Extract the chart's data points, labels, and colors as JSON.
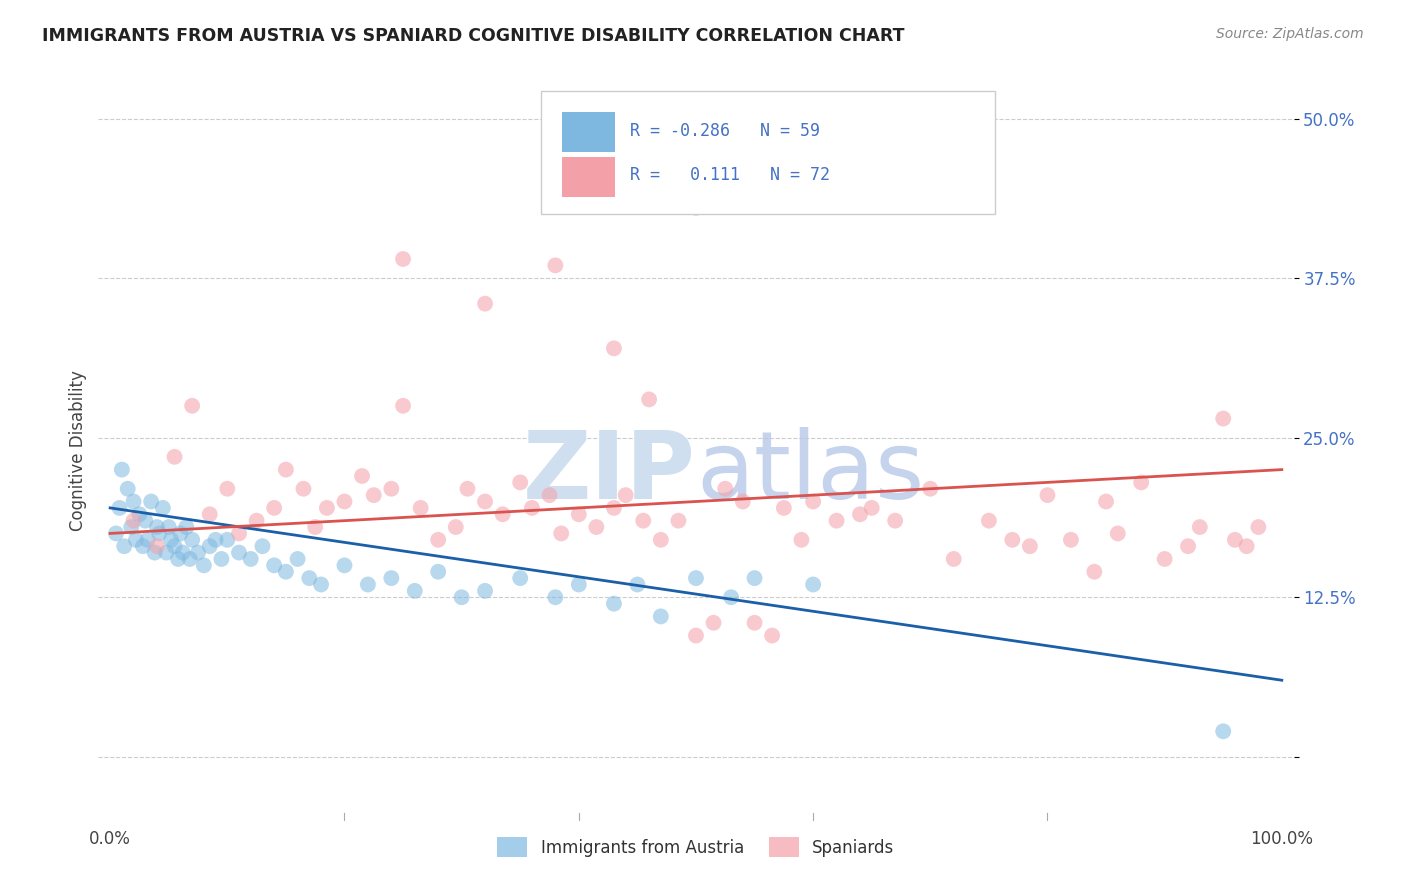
{
  "title": "IMMIGRANTS FROM AUSTRIA VS SPANIARD COGNITIVE DISABILITY CORRELATION CHART",
  "source": "Source: ZipAtlas.com",
  "ylabel": "Cognitive Disability",
  "xtick_labels": [
    "0.0%",
    "100.0%"
  ],
  "ytick_labels": [
    "",
    "12.5%",
    "25.0%",
    "37.5%",
    "50.0%"
  ],
  "ytick_vals": [
    0,
    12.5,
    25,
    37.5,
    50
  ],
  "legend_line1": "R = -0.286   N = 59",
  "legend_line2": "R =    0.111   N = 72",
  "blue_color": "#7eb8e0",
  "pink_color": "#f4a0a8",
  "trend_blue_color": "#1a5fa8",
  "trend_pink_color": "#d9534f",
  "grid_color": "#cccccc",
  "bg_color": "#ffffff",
  "label_color": "#4472C4",
  "title_color": "#222222",
  "source_color": "#888888",
  "watermark_color": "#d0dff0",
  "blue_scatter_x": [
    0.5,
    0.8,
    1.0,
    1.2,
    1.5,
    1.8,
    2.0,
    2.2,
    2.5,
    2.8,
    3.0,
    3.2,
    3.5,
    3.8,
    4.0,
    4.2,
    4.5,
    4.8,
    5.0,
    5.2,
    5.5,
    5.8,
    6.0,
    6.2,
    6.5,
    6.8,
    7.0,
    7.5,
    8.0,
    8.5,
    9.0,
    9.5,
    10.0,
    11.0,
    12.0,
    13.0,
    14.0,
    15.0,
    16.0,
    17.0,
    18.0,
    20.0,
    22.0,
    24.0,
    26.0,
    28.0,
    30.0,
    32.0,
    35.0,
    38.0,
    40.0,
    43.0,
    45.0,
    47.0,
    50.0,
    53.0,
    55.0,
    60.0,
    95.0
  ],
  "blue_scatter_y": [
    17.5,
    19.5,
    22.5,
    16.5,
    21.0,
    18.0,
    20.0,
    17.0,
    19.0,
    16.5,
    18.5,
    17.0,
    20.0,
    16.0,
    18.0,
    17.5,
    19.5,
    16.0,
    18.0,
    17.0,
    16.5,
    15.5,
    17.5,
    16.0,
    18.0,
    15.5,
    17.0,
    16.0,
    15.0,
    16.5,
    17.0,
    15.5,
    17.0,
    16.0,
    15.5,
    16.5,
    15.0,
    14.5,
    15.5,
    14.0,
    13.5,
    15.0,
    13.5,
    14.0,
    13.0,
    14.5,
    12.5,
    13.0,
    14.0,
    12.5,
    13.5,
    12.0,
    13.5,
    11.0,
    14.0,
    12.5,
    14.0,
    13.5,
    2.0
  ],
  "pink_scatter_x": [
    2.0,
    4.0,
    5.5,
    7.0,
    8.5,
    10.0,
    11.0,
    12.5,
    14.0,
    15.0,
    16.5,
    17.5,
    18.5,
    20.0,
    21.5,
    22.5,
    24.0,
    25.0,
    26.5,
    28.0,
    29.5,
    30.5,
    32.0,
    33.5,
    35.0,
    36.0,
    37.5,
    38.5,
    40.0,
    41.5,
    43.0,
    44.0,
    45.5,
    47.0,
    48.5,
    50.0,
    51.5,
    52.5,
    54.0,
    55.0,
    56.5,
    57.5,
    59.0,
    60.0,
    62.0,
    64.0,
    65.0,
    67.0,
    70.0,
    72.0,
    75.0,
    77.0,
    78.5,
    80.0,
    82.0,
    84.0,
    85.0,
    86.0,
    88.0,
    90.0,
    92.0,
    93.0,
    95.0,
    96.0,
    97.0,
    98.0,
    25.0,
    32.0,
    38.0,
    43.0,
    46.0,
    50.0
  ],
  "pink_scatter_y": [
    18.5,
    16.5,
    23.5,
    27.5,
    19.0,
    21.0,
    17.5,
    18.5,
    19.5,
    22.5,
    21.0,
    18.0,
    19.5,
    20.0,
    22.0,
    20.5,
    21.0,
    27.5,
    19.5,
    17.0,
    18.0,
    21.0,
    20.0,
    19.0,
    21.5,
    19.5,
    20.5,
    17.5,
    19.0,
    18.0,
    19.5,
    20.5,
    18.5,
    17.0,
    18.5,
    9.5,
    10.5,
    21.0,
    20.0,
    10.5,
    9.5,
    19.5,
    17.0,
    20.0,
    18.5,
    19.0,
    19.5,
    18.5,
    21.0,
    15.5,
    18.5,
    17.0,
    16.5,
    20.5,
    17.0,
    14.5,
    20.0,
    17.5,
    21.5,
    15.5,
    16.5,
    18.0,
    26.5,
    17.0,
    16.5,
    18.0,
    39.0,
    35.5,
    38.5,
    32.0,
    28.0,
    43.0
  ],
  "blue_trend_start_y": 19.5,
  "blue_trend_end_y": 6.0,
  "pink_trend_start_y": 17.5,
  "pink_trend_end_y": 22.5,
  "xlim_left": -1,
  "xlim_right": 101,
  "ylim_bottom": -5,
  "ylim_top": 53
}
